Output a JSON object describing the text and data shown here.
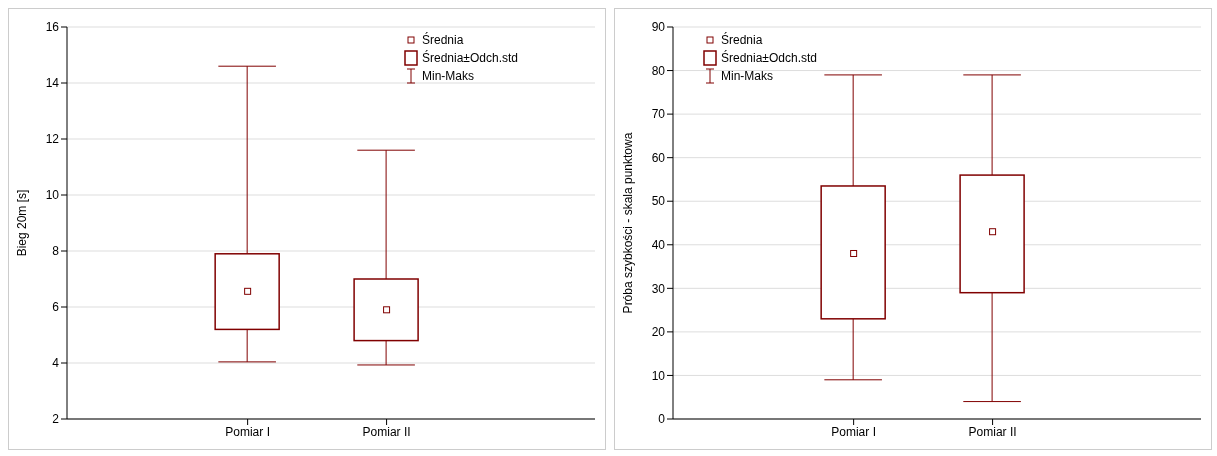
{
  "chart_data": [
    {
      "type": "box",
      "ylabel": "Bieg 20m [s]",
      "categories": [
        "Pomiar I",
        "Pomiar II"
      ],
      "color": "#800000",
      "ylim": [
        2,
        16
      ],
      "yticks": [
        2,
        4,
        6,
        8,
        10,
        12,
        14,
        16
      ],
      "grid": "y",
      "annotations": [
        "Średnia",
        "Średnia±Odch.std",
        "Min-Maks"
      ],
      "boxes": [
        {
          "low": 4.04,
          "q1": 5.2,
          "mean": 6.56,
          "q3": 7.9,
          "high": 14.6
        },
        {
          "low": 3.93,
          "q1": 4.8,
          "mean": 5.9,
          "q3": 7.0,
          "high": 11.6
        }
      ]
    },
    {
      "type": "box",
      "ylabel": "Próba szybkości - skala punktowa",
      "categories": [
        "Pomiar I",
        "Pomiar II"
      ],
      "color": "#800000",
      "ylim": [
        0,
        90
      ],
      "yticks": [
        0,
        10,
        20,
        30,
        40,
        50,
        60,
        70,
        80,
        90
      ],
      "grid": "y",
      "annotations": [
        "Średnia",
        "Średnia±Odch.std",
        "Min-Maks"
      ],
      "boxes": [
        {
          "low": 9,
          "q1": 23,
          "mean": 38,
          "q3": 53.5,
          "high": 79
        },
        {
          "low": 4,
          "q1": 29,
          "mean": 43,
          "q3": 56,
          "high": 79
        }
      ]
    }
  ]
}
